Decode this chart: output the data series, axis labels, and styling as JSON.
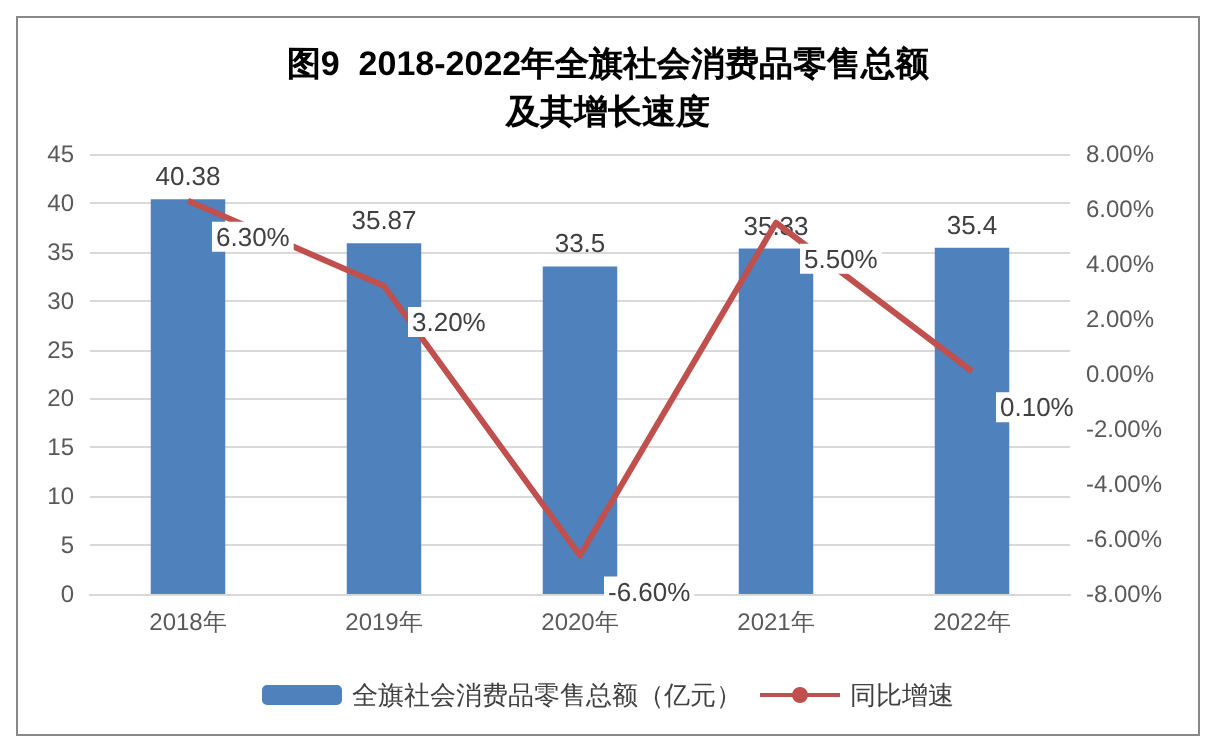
{
  "chart_data": {
    "type": "bar",
    "title": "图9  2018-2022年全旗社会消费品零售总额及其增长速度",
    "categories": [
      "2018年",
      "2019年",
      "2020年",
      "2021年",
      "2022年"
    ],
    "series": [
      {
        "name": "全旗社会消费品零售总额（亿元）",
        "color": "#4f81bd",
        "values": [
          40.38,
          35.87,
          33.5,
          35.33,
          35.4
        ]
      },
      {
        "name": "同比增速",
        "type": "line",
        "axis": "y2",
        "color": "#c0504d",
        "values": [
          6.3,
          3.2,
          -6.6,
          5.5,
          0.1
        ],
        "value_labels": [
          "6.30%",
          "3.20%",
          "-6.60%",
          "5.50%",
          "0.10%"
        ]
      }
    ],
    "data_labels": true,
    "ylim": [
      0,
      45
    ],
    "yticks": [
      0,
      5,
      10,
      15,
      20,
      25,
      30,
      35,
      40,
      45
    ],
    "y2lim": [
      -8,
      8
    ],
    "y2ticks": [
      {
        "value": -8,
        "label": "-8.00%"
      },
      {
        "value": -6,
        "label": "-6.00%"
      },
      {
        "value": -4,
        "label": "-4.00%"
      },
      {
        "value": -2,
        "label": "-2.00%"
      },
      {
        "value": 0,
        "label": "0.00%"
      },
      {
        "value": 2,
        "label": "2.00%"
      },
      {
        "value": 4,
        "label": "4.00%"
      },
      {
        "value": 6,
        "label": "6.00%"
      },
      {
        "value": 8,
        "label": "8.00%"
      }
    ],
    "grid": "y",
    "legend": "bottom",
    "marker": "none",
    "line_style": "solid"
  }
}
